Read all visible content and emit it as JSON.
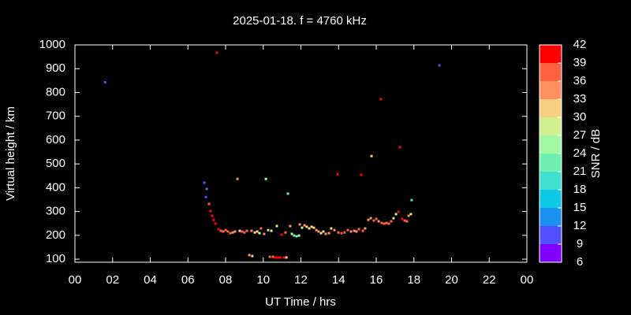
{
  "chart_data": {
    "type": "scatter",
    "title": "2025-01-18. f = 4760 kHz",
    "xlabel": "UT Time / hrs",
    "ylabel": "Virtual height / km",
    "colorbar_label": "SNR / dB",
    "xlim": [
      0,
      24
    ],
    "xticks": [
      {
        "value": 0,
        "label": "00"
      },
      {
        "value": 2,
        "label": "02"
      },
      {
        "value": 4,
        "label": "04"
      },
      {
        "value": 6,
        "label": "06"
      },
      {
        "value": 8,
        "label": "08"
      },
      10,
      12,
      14,
      16,
      18,
      20,
      22,
      {
        "value": 24,
        "label": "00"
      }
    ],
    "ylim": [
      87,
      1000
    ],
    "yticks": [
      100,
      200,
      300,
      400,
      500,
      600,
      700,
      800,
      900,
      1000
    ],
    "clim": [
      6,
      42
    ],
    "cticks": [
      6,
      9,
      12,
      15,
      18,
      21,
      24,
      27,
      30,
      33,
      36,
      39,
      42
    ],
    "colors": [
      "#8000ff",
      "#5050ff",
      "#1a90f0",
      "#10c8e8",
      "#40e0d0",
      "#70f0b0",
      "#a0f8a0",
      "#d0f090",
      "#f8d080",
      "#ff9060",
      "#ff6040",
      "#ff0000"
    ],
    "x": [
      1.6,
      7.54,
      19.35,
      6.87,
      7.0,
      6.95,
      7.12,
      7.2,
      7.29,
      7.37,
      7.46,
      7.62,
      7.75,
      7.87,
      8.0,
      8.12,
      8.25,
      8.38,
      8.5,
      8.63,
      8.75,
      8.88,
      9.0,
      9.13,
      9.26,
      9.38,
      9.42,
      9.55,
      9.68,
      9.8,
      9.88,
      10.05,
      10.14,
      10.26,
      10.35,
      10.43,
      10.51,
      10.64,
      10.72,
      10.76,
      10.89,
      10.97,
      11.1,
      11.18,
      11.23,
      11.31,
      11.43,
      11.52,
      11.64,
      11.77,
      11.9,
      11.94,
      12.06,
      12.19,
      12.31,
      12.44,
      12.57,
      12.69,
      12.82,
      12.94,
      13.07,
      13.19,
      13.32,
      13.49,
      13.61,
      13.78,
      13.95,
      13.99,
      14.16,
      14.32,
      14.49,
      14.66,
      14.83,
      14.95,
      15.08,
      15.2,
      15.29,
      15.41,
      15.58,
      15.71,
      15.75,
      15.87,
      16.0,
      16.13,
      16.25,
      16.29,
      16.42,
      16.54,
      16.67,
      16.8,
      16.92,
      17.05,
      17.18,
      17.26,
      17.38,
      17.51,
      17.63,
      17.72,
      17.84,
      17.88
    ],
    "values": [
      843,
      967,
      914,
      421,
      395,
      361,
      332,
      302,
      282,
      265,
      249,
      226,
      219,
      216,
      222,
      216,
      209,
      212,
      216,
      437,
      219,
      216,
      212,
      219,
      117,
      219,
      113,
      212,
      216,
      209,
      229,
      206,
      437,
      222,
      110,
      219,
      110,
      107,
      239,
      107,
      107,
      203,
      107,
      212,
      107,
      375,
      239,
      206,
      199,
      196,
      199,
      246,
      232,
      242,
      236,
      229,
      236,
      232,
      222,
      216,
      209,
      216,
      206,
      209,
      229,
      222,
      457,
      212,
      209,
      212,
      222,
      216,
      219,
      216,
      226,
      454,
      219,
      229,
      265,
      272,
      533,
      262,
      269,
      259,
      772,
      252,
      249,
      252,
      249,
      259,
      272,
      289,
      299,
      570,
      269,
      262,
      259,
      282,
      289,
      348
    ],
    "snr": [
      10,
      40,
      10,
      11,
      12,
      11,
      38,
      39,
      40,
      40,
      40,
      40,
      38,
      38,
      38,
      37,
      36,
      35,
      34,
      33,
      32,
      37,
      37,
      36,
      33,
      34,
      32,
      31,
      30,
      29,
      38,
      33,
      25,
      31,
      36,
      27,
      38,
      39,
      27,
      39,
      40,
      39,
      40,
      38,
      30,
      22,
      33,
      24,
      23,
      22,
      24,
      35,
      27,
      33,
      31,
      32,
      30,
      31,
      33,
      33,
      32,
      30,
      34,
      33,
      31,
      35,
      40,
      37,
      38,
      37,
      36,
      35,
      34,
      35,
      37,
      41,
      36,
      34,
      34,
      33,
      32,
      36,
      36,
      35,
      40,
      36,
      37,
      38,
      37,
      36,
      31,
      29,
      40,
      40,
      39,
      38,
      38,
      33,
      32,
      20
    ]
  }
}
